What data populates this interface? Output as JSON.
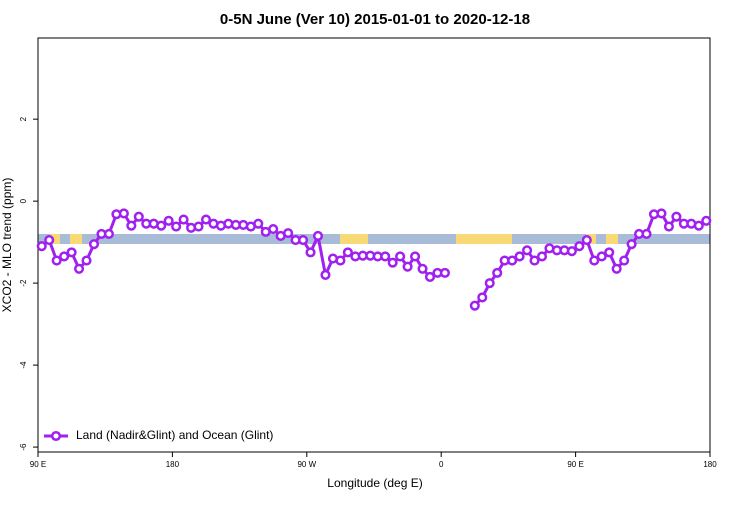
{
  "chart_data": {
    "type": "line",
    "title": "0-5N June (Ver 10)   2015-01-01 to 2020-12-18",
    "x_label": "Longitude (deg E)",
    "y_label": "XCO2 - MLO trend (ppm)",
    "x": [
      92.5,
      97.5,
      102.5,
      107.5,
      112.5,
      117.5,
      122.5,
      127.5,
      132.5,
      137.5,
      142.5,
      147.5,
      152.5,
      157.5,
      162.5,
      167.5,
      172.5,
      177.5,
      182.5,
      187.5,
      192.5,
      197.5,
      202.5,
      207.5,
      212.5,
      217.5,
      222.5,
      227.5,
      232.5,
      237.5,
      242.5,
      247.5,
      252.5,
      257.5,
      262.5,
      267.5,
      272.5,
      277.5,
      282.5,
      287.5,
      292.5,
      297.5,
      302.5,
      307.5,
      312.5,
      317.5,
      322.5,
      327.5,
      332.5,
      337.5,
      342.5,
      347.5,
      352.5,
      357.5,
      362.5,
      367.5,
      372.5,
      377.5,
      382.5,
      387.5,
      392.5,
      397.5,
      402.5,
      407.5,
      412.5,
      417.5,
      422.5,
      427.5,
      432.5,
      437.5,
      442.5,
      447.5,
      452.5,
      457.5,
      462.5,
      467.5,
      472.5,
      477.5,
      482.5,
      487.5,
      492.5,
      497.5,
      502.5,
      507.5,
      512.5,
      517.5,
      522.5,
      527.5,
      532.5,
      537.5
    ],
    "series": [
      {
        "name": "Land (Nadir&Glint) and Ocean (Glint)",
        "color": "#a020f0",
        "values": [
          -1.1,
          -0.95,
          -1.45,
          -1.35,
          -1.25,
          -1.65,
          -1.45,
          -1.05,
          -0.8,
          -0.8,
          -0.32,
          -0.3,
          -0.6,
          -0.38,
          -0.55,
          -0.55,
          -0.6,
          -0.48,
          -0.62,
          -0.45,
          -0.65,
          -0.62,
          -0.45,
          -0.55,
          -0.6,
          -0.55,
          -0.58,
          -0.58,
          -0.62,
          -0.55,
          -0.75,
          -0.68,
          -0.85,
          -0.78,
          -0.95,
          -0.95,
          -1.25,
          -0.85,
          -1.8,
          -1.4,
          -1.45,
          -1.25,
          -1.35,
          -1.33,
          -1.33,
          -1.35,
          -1.35,
          -1.5,
          -1.35,
          -1.6,
          -1.35,
          -1.65,
          -1.85,
          -1.75,
          -1.75,
          null,
          null,
          null,
          -2.55,
          -2.35,
          -2.0,
          -1.75,
          -1.45,
          -1.45,
          -1.35,
          -1.2,
          -1.45,
          -1.35,
          -1.15,
          -1.2,
          -1.2,
          -1.22,
          -1.1,
          -0.95,
          -1.45,
          -1.35,
          -1.25,
          -1.65,
          -1.45,
          -1.05,
          -0.8,
          -0.8,
          -0.32,
          -0.3,
          -0.62,
          -0.38,
          -0.55,
          -0.55,
          -0.6,
          -0.48
        ]
      }
    ],
    "xlim": [
      90,
      540
    ],
    "xticks": [
      {
        "value": 90,
        "label": "90 E"
      },
      180,
      {
        "value": 270,
        "label": "90 W"
      },
      {
        "value": 360,
        "label": "0"
      },
      {
        "value": 450,
        "label": "90 E"
      },
      {
        "value": 540,
        "label": "180"
      }
    ],
    "ylim": [
      -6.12,
      3.98
    ],
    "yticks": [
      -6,
      -4,
      -2,
      0,
      2
    ],
    "legend": "bottom-left"
  }
}
